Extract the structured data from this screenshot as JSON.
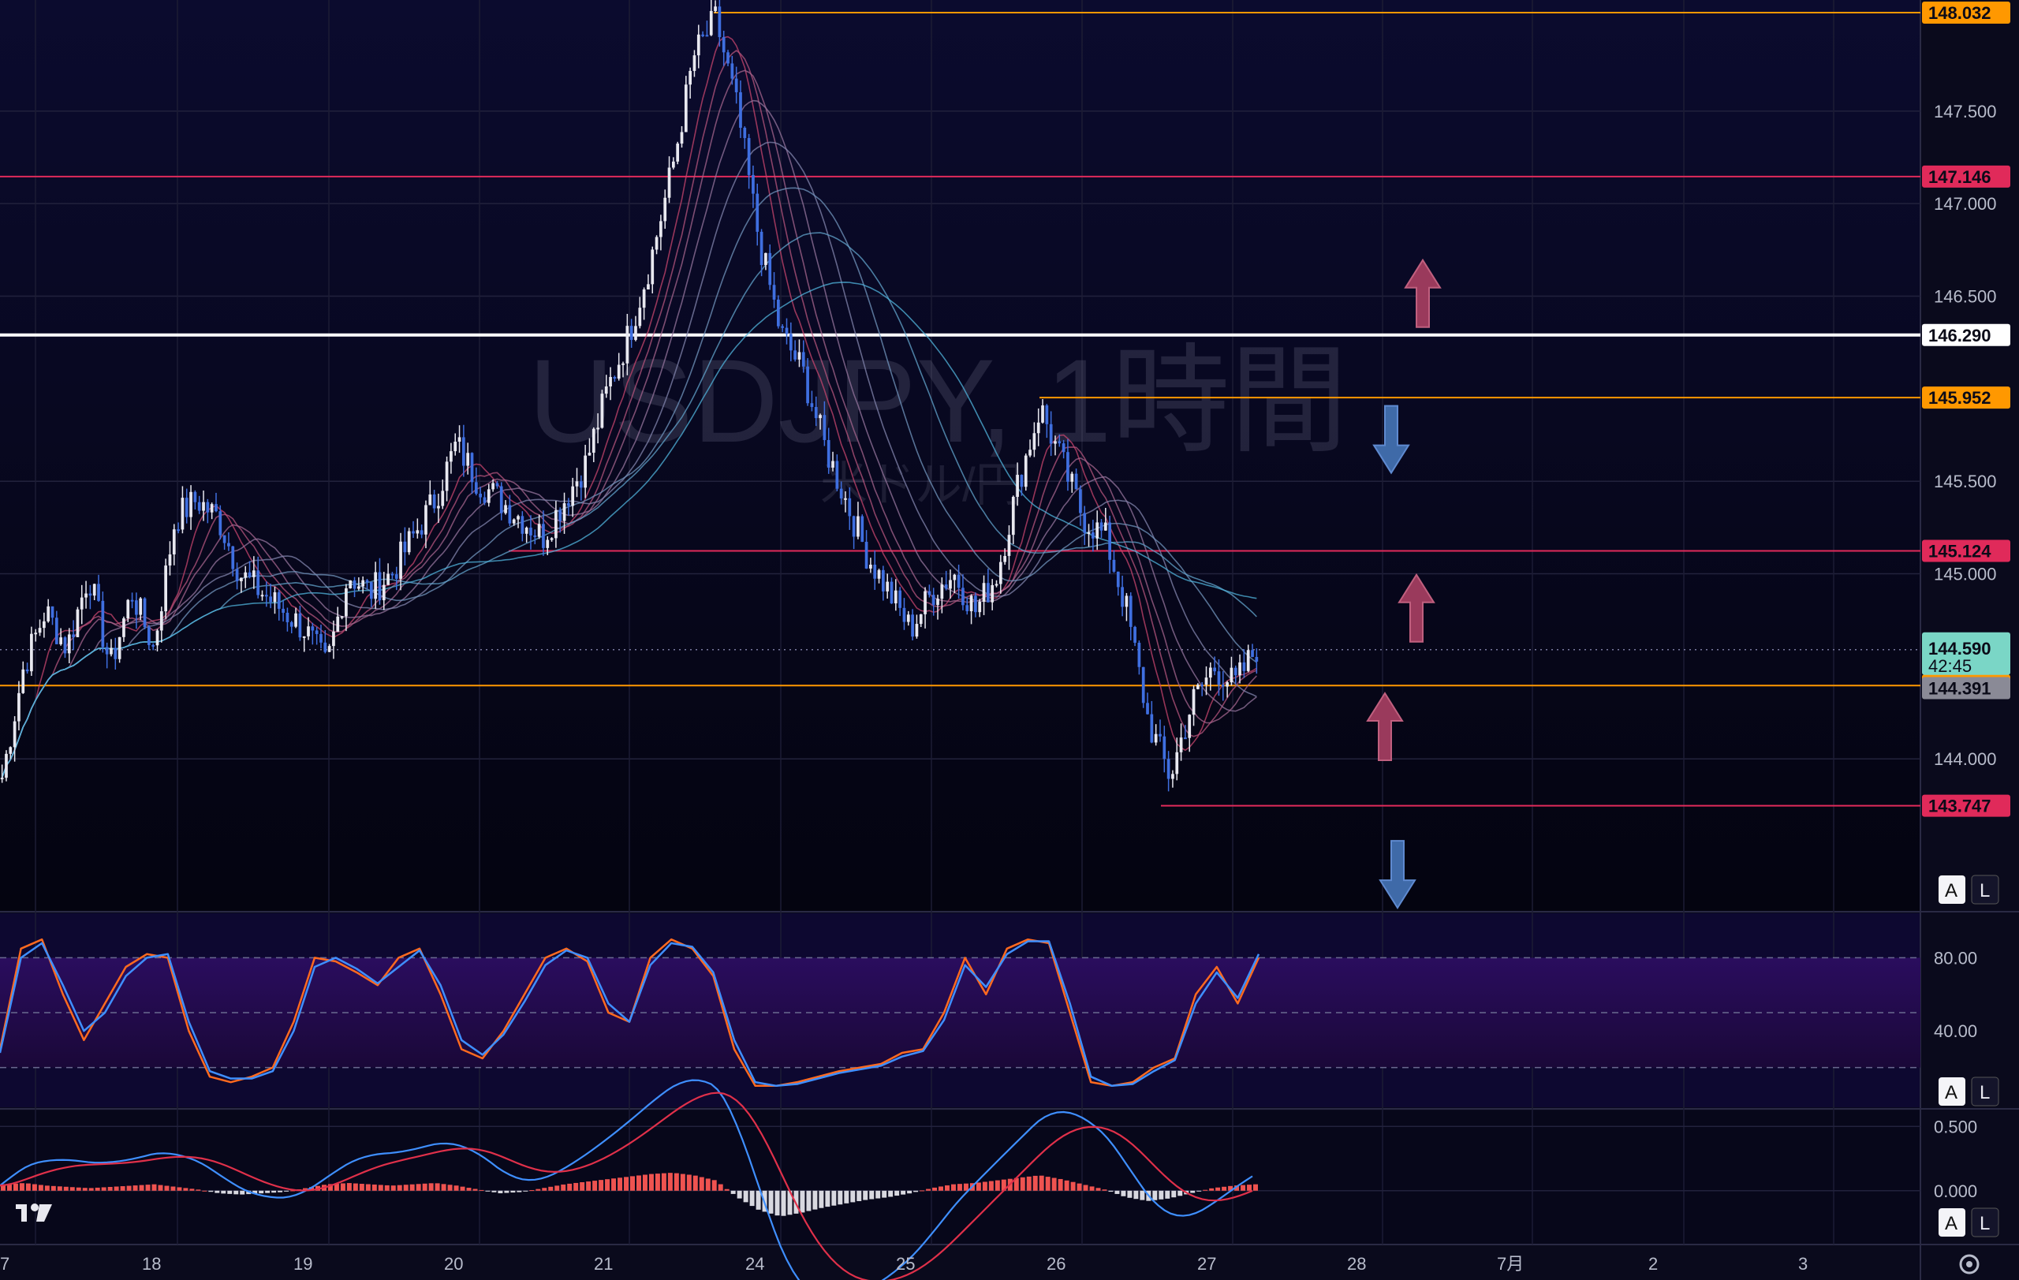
{
  "watermark": {
    "symbol": "USDJPY, 1時間",
    "name": "米ドル/円"
  },
  "logo": "TV",
  "colors": {
    "bg_top": "#0b0b2a",
    "bg_bottom": "#050510",
    "bull": "#e8e8f0",
    "bear": "#3f6fe0",
    "red_line": "#e02a5a",
    "orange_line": "#ff9800",
    "white_line": "#ffffff",
    "stoch_k": "#3f8fff",
    "stoch_d": "#ff6a1f",
    "macd_line": "#3f8fff",
    "signal_line": "#e0304a",
    "hist_pos": "#ef5350",
    "hist_neg": "#d8d8e0",
    "arrow_up": "#9a3a5c",
    "arrow_down": "#3f6aa8",
    "current_tag": "#7ad6c6"
  },
  "chart_data": [
    {
      "type": "candlestick",
      "title": "USDJPY, 1時間",
      "subtitle": "米ドル/円",
      "x_labels": [
        "7",
        "18",
        "19",
        "20",
        "21",
        "24",
        "25",
        "26",
        "27",
        "28",
        "7月",
        "2",
        "3"
      ],
      "y_ticks": [
        "147.500",
        "147.000",
        "146.500",
        "145.500",
        "145.000",
        "144.000"
      ],
      "ylim": [
        143.2,
        148.1
      ],
      "horizontal_levels": [
        {
          "price": 148.032,
          "label": "148.032",
          "color": "orange"
        },
        {
          "price": 147.146,
          "label": "147.146",
          "color": "red"
        },
        {
          "price": 146.29,
          "label": "146.290",
          "color": "white"
        },
        {
          "price": 145.952,
          "label": "145.952",
          "color": "orange"
        },
        {
          "price": 145.124,
          "label": "145.124",
          "color": "red"
        },
        {
          "price": 144.396,
          "label": "144.396",
          "color": "orange"
        },
        {
          "price": 143.747,
          "label": "143.747",
          "color": "red"
        }
      ],
      "current_price": {
        "price": 144.59,
        "label": "144.590",
        "countdown": "42:45"
      },
      "prev_close": {
        "price": 144.391,
        "label": "144.391"
      },
      "close_path": [
        143.9,
        144.5,
        144.8,
        144.6,
        145.0,
        144.5,
        144.9,
        144.6,
        145.3,
        145.4,
        145.3,
        145.0,
        144.9,
        144.8,
        144.7,
        144.5,
        145.0,
        144.9,
        145.0,
        145.2,
        145.4,
        145.7,
        145.5,
        145.4,
        145.3,
        145.2,
        145.4,
        145.6,
        146.0,
        146.3,
        146.7,
        147.2,
        147.8,
        148.0,
        147.5,
        146.8,
        146.3,
        146.1,
        145.7,
        145.4,
        145.1,
        144.9,
        144.7,
        144.9,
        145.0,
        144.8,
        145.0,
        145.5,
        145.9,
        145.6,
        145.3,
        145.2,
        144.8,
        144.2,
        143.9,
        144.3,
        144.5,
        144.4,
        144.6
      ],
      "annotations": [
        {
          "type": "arrow",
          "dir": "up",
          "price": 146.29
        },
        {
          "type": "arrow",
          "dir": "down",
          "price": 145.95
        },
        {
          "type": "arrow",
          "dir": "up",
          "price": 144.59
        },
        {
          "type": "arrow",
          "dir": "up",
          "price": 143.95
        },
        {
          "type": "arrow",
          "dir": "down",
          "price": 143.6
        }
      ]
    },
    {
      "type": "line",
      "title": "Stochastic",
      "y_ticks": [
        "80.00",
        "40.00"
      ],
      "ylim": [
        0,
        100
      ],
      "levels": [
        80,
        50,
        20
      ],
      "series": [
        {
          "values": [
            30,
            85,
            90,
            60,
            35,
            55,
            75,
            82,
            80,
            40,
            15,
            12,
            15,
            20,
            45,
            80,
            78,
            72,
            65,
            80,
            85,
            60,
            30,
            25,
            40,
            60,
            80,
            85,
            78,
            50,
            45,
            80,
            90,
            85,
            70,
            30,
            10,
            10,
            12,
            15,
            18,
            20,
            22,
            28,
            30,
            50,
            80,
            60,
            85,
            90,
            88,
            50,
            12,
            10,
            12,
            20,
            25,
            60,
            75,
            55,
            80
          ]
        },
        {
          "values": [
            28,
            80,
            88,
            65,
            40,
            50,
            70,
            80,
            82,
            45,
            18,
            14,
            14,
            18,
            40,
            75,
            80,
            74,
            66,
            75,
            84,
            65,
            35,
            27,
            38,
            56,
            76,
            84,
            80,
            55,
            45,
            76,
            88,
            86,
            72,
            35,
            12,
            10,
            11,
            14,
            17,
            19,
            21,
            26,
            29,
            46,
            76,
            64,
            82,
            89,
            89,
            55,
            15,
            10,
            11,
            18,
            24,
            55,
            72,
            58,
            82
          ]
        }
      ]
    },
    {
      "type": "bar",
      "title": "MACD",
      "y_ticks": [
        "0.500",
        "0.000"
      ],
      "ylim": [
        -0.4,
        0.6
      ],
      "histogram": [
        0.05,
        0.06,
        0.04,
        0.03,
        0.02,
        0.03,
        0.04,
        0.05,
        0.03,
        0.01,
        -0.02,
        -0.03,
        -0.02,
        -0.01,
        0.02,
        0.05,
        0.06,
        0.05,
        0.04,
        0.05,
        0.06,
        0.04,
        0.01,
        -0.02,
        -0.01,
        0.02,
        0.05,
        0.07,
        0.09,
        0.11,
        0.13,
        0.14,
        0.12,
        0.08,
        -0.05,
        -0.15,
        -0.2,
        -0.17,
        -0.13,
        -0.1,
        -0.07,
        -0.05,
        -0.02,
        0.02,
        0.05,
        0.06,
        0.08,
        0.1,
        0.12,
        0.09,
        0.05,
        0.01,
        -0.05,
        -0.08,
        -0.06,
        -0.02,
        0.02,
        0.04,
        0.05
      ]
    }
  ],
  "toolbar": {
    "auto_btn": "A",
    "log_btn": "L"
  },
  "time_axis_settings_icon": "gear-icon"
}
